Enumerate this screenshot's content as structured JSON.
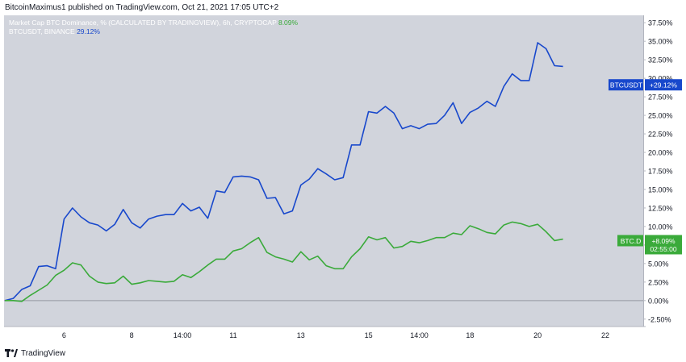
{
  "publish_line": "BitcoinMaximus1 published on TradingView.com, Oct 21, 2021 17:05 UTC+2",
  "footer": {
    "brand": "TradingView"
  },
  "colors": {
    "plot_bg": "#d1d4dc",
    "axis_bg": "#ffffff",
    "btcusdt": "#1848cc",
    "dominance": "#3aaa3a",
    "zero_line": "#9598a1",
    "text": "#131722"
  },
  "chart_data": {
    "type": "line",
    "legend": [
      {
        "text": "Market Cap BTC Dominance, % (CALCULATED BY TRADINGVIEW), 6h, CRYPTOCAP",
        "value": "8.09%"
      },
      {
        "text": "BTCUSDT, BINANCE",
        "value": "29.12%"
      }
    ],
    "y_ticks": [
      "37.50%",
      "35.00%",
      "32.50%",
      "30.00%",
      "27.50%",
      "25.00%",
      "22.50%",
      "20.00%",
      "17.50%",
      "15.00%",
      "12.50%",
      "10.00%",
      "7.50%",
      "5.00%",
      "2.50%",
      "0.00%",
      "-2.50%"
    ],
    "x_ticks": [
      "6",
      "8",
      "14:00",
      "11",
      "13",
      "15",
      "14:00",
      "18",
      "20",
      "22"
    ],
    "ylim": [
      -3.5,
      38.5
    ],
    "series": [
      {
        "name": "BTCUSDT",
        "color": "#1848cc",
        "label": "BTCUSDT",
        "value_label": "+29.12%",
        "x": [
          4.25,
          4.5,
          4.75,
          5.0,
          5.25,
          5.5,
          5.75,
          6.0,
          6.25,
          6.5,
          6.75,
          7.0,
          7.25,
          7.5,
          7.75,
          8.0,
          8.25,
          8.5,
          8.75,
          9.0,
          9.25,
          9.5,
          9.75,
          10.0,
          10.25,
          10.5,
          10.75,
          11.0,
          11.25,
          11.5,
          11.75,
          12.0,
          12.25,
          12.5,
          12.75,
          13.0,
          13.25,
          13.5,
          13.75,
          14.0,
          14.25,
          14.5,
          14.75,
          15.0,
          15.25,
          15.5,
          15.75,
          16.0,
          16.25,
          16.5,
          16.75,
          17.0,
          17.25,
          17.5,
          17.75,
          18.0,
          18.25,
          18.5,
          18.75,
          19.0,
          19.25,
          19.5,
          19.75,
          20.0,
          20.25,
          20.5,
          20.75,
          21.0,
          21.25
        ],
        "values": [
          0.0,
          0.3,
          1.5,
          2.0,
          4.6,
          4.7,
          4.3,
          11.0,
          12.5,
          11.3,
          10.5,
          10.2,
          9.4,
          10.3,
          12.3,
          10.5,
          9.8,
          11.0,
          11.4,
          11.6,
          11.6,
          13.1,
          12.1,
          12.6,
          11.1,
          14.8,
          14.6,
          16.7,
          16.8,
          16.7,
          16.3,
          13.8,
          13.9,
          11.7,
          12.1,
          15.6,
          16.4,
          17.8,
          17.1,
          16.3,
          16.6,
          21.0,
          21.0,
          25.5,
          25.3,
          26.2,
          25.3,
          23.2,
          23.6,
          23.2,
          23.8,
          23.9,
          25.0,
          26.7,
          23.9,
          25.4,
          26.0,
          26.9,
          26.2,
          28.9,
          30.6,
          29.7,
          29.7,
          34.8,
          34.0,
          31.7,
          31.6,
          29.12,
          29.12
        ],
        "end_index": 67
      },
      {
        "name": "BTC.D",
        "color": "#3aaa3a",
        "label": "BTC.D",
        "value_label": "+8.09%",
        "sub_label": "02:55:00",
        "x": [
          4.25,
          4.5,
          4.75,
          5.0,
          5.25,
          5.5,
          5.75,
          6.0,
          6.25,
          6.5,
          6.75,
          7.0,
          7.25,
          7.5,
          7.75,
          8.0,
          8.25,
          8.5,
          8.75,
          9.0,
          9.25,
          9.5,
          9.75,
          10.0,
          10.25,
          10.5,
          10.75,
          11.0,
          11.25,
          11.5,
          11.75,
          12.0,
          12.25,
          12.5,
          12.75,
          13.0,
          13.25,
          13.5,
          13.75,
          14.0,
          14.25,
          14.5,
          14.75,
          15.0,
          15.25,
          15.5,
          15.75,
          16.0,
          16.25,
          16.5,
          16.75,
          17.0,
          17.25,
          17.5,
          17.75,
          18.0,
          18.25,
          18.5,
          18.75,
          19.0,
          19.25,
          19.5,
          19.75,
          20.0,
          20.25,
          20.5,
          20.75,
          21.0,
          21.25
        ],
        "values": [
          0.0,
          0.0,
          -0.1,
          0.7,
          1.4,
          2.1,
          3.4,
          4.1,
          5.1,
          4.8,
          3.3,
          2.5,
          2.3,
          2.4,
          3.3,
          2.2,
          2.4,
          2.7,
          2.6,
          2.5,
          2.6,
          3.5,
          3.1,
          3.9,
          4.8,
          5.6,
          5.6,
          6.7,
          7.0,
          7.8,
          8.5,
          6.5,
          5.9,
          5.6,
          5.2,
          6.6,
          5.5,
          6.0,
          4.7,
          4.3,
          4.3,
          5.9,
          7.0,
          8.6,
          8.2,
          8.5,
          7.1,
          7.3,
          8.0,
          7.8,
          8.1,
          8.5,
          8.5,
          9.1,
          8.9,
          10.1,
          9.7,
          9.2,
          9.0,
          10.2,
          10.6,
          10.4,
          10.0,
          10.3,
          9.3,
          8.1,
          8.3,
          8.09,
          8.09
        ],
        "end_index": 67
      }
    ]
  }
}
